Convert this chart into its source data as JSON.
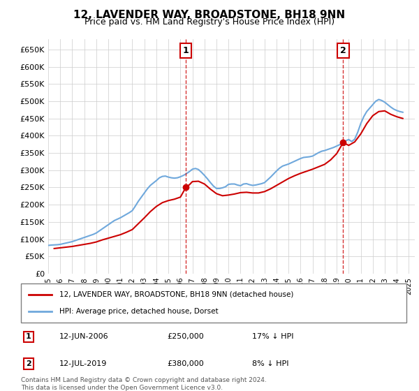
{
  "title": "12, LAVENDER WAY, BROADSTONE, BH18 9NN",
  "subtitle": "Price paid vs. HM Land Registry's House Price Index (HPI)",
  "ylabel_ticks": [
    "£0",
    "£50K",
    "£100K",
    "£150K",
    "£200K",
    "£250K",
    "£300K",
    "£350K",
    "£400K",
    "£450K",
    "£500K",
    "£550K",
    "£600K",
    "£650K"
  ],
  "ylim": [
    0,
    680000
  ],
  "yticks": [
    0,
    50000,
    100000,
    150000,
    200000,
    250000,
    300000,
    350000,
    400000,
    450000,
    500000,
    550000,
    600000,
    650000
  ],
  "xlim_start": 1995.0,
  "xlim_end": 2025.5,
  "hpi_color": "#6fa8dc",
  "price_color": "#cc0000",
  "transaction1": {
    "date_num": 2006.45,
    "price": 250000,
    "label": "1",
    "date_str": "12-JUN-2006",
    "price_str": "£250,000",
    "hpi_diff": "17% ↓ HPI"
  },
  "transaction2": {
    "date_num": 2019.54,
    "price": 380000,
    "label": "2",
    "date_str": "12-JUL-2019",
    "price_str": "£380,000",
    "hpi_diff": "8% ↓ HPI"
  },
  "legend_label_red": "12, LAVENDER WAY, BROADSTONE, BH18 9NN (detached house)",
  "legend_label_blue": "HPI: Average price, detached house, Dorset",
  "footer": "Contains HM Land Registry data © Crown copyright and database right 2024.\nThis data is licensed under the Open Government Licence v3.0.",
  "hpi_x": [
    1995.0,
    1995.25,
    1995.5,
    1995.75,
    1996.0,
    1996.25,
    1996.5,
    1996.75,
    1997.0,
    1997.25,
    1997.5,
    1997.75,
    1998.0,
    1998.25,
    1998.5,
    1998.75,
    1999.0,
    1999.25,
    1999.5,
    1999.75,
    2000.0,
    2000.25,
    2000.5,
    2000.75,
    2001.0,
    2001.25,
    2001.5,
    2001.75,
    2002.0,
    2002.25,
    2002.5,
    2002.75,
    2003.0,
    2003.25,
    2003.5,
    2003.75,
    2004.0,
    2004.25,
    2004.5,
    2004.75,
    2005.0,
    2005.25,
    2005.5,
    2005.75,
    2006.0,
    2006.25,
    2006.5,
    2006.75,
    2007.0,
    2007.25,
    2007.5,
    2007.75,
    2008.0,
    2008.25,
    2008.5,
    2008.75,
    2009.0,
    2009.25,
    2009.5,
    2009.75,
    2010.0,
    2010.25,
    2010.5,
    2010.75,
    2011.0,
    2011.25,
    2011.5,
    2011.75,
    2012.0,
    2012.25,
    2012.5,
    2012.75,
    2013.0,
    2013.25,
    2013.5,
    2013.75,
    2014.0,
    2014.25,
    2014.5,
    2014.75,
    2015.0,
    2015.25,
    2015.5,
    2015.75,
    2016.0,
    2016.25,
    2016.5,
    2016.75,
    2017.0,
    2017.25,
    2017.5,
    2017.75,
    2018.0,
    2018.25,
    2018.5,
    2018.75,
    2019.0,
    2019.25,
    2019.5,
    2019.75,
    2020.0,
    2020.25,
    2020.5,
    2020.75,
    2021.0,
    2021.25,
    2021.5,
    2021.75,
    2022.0,
    2022.25,
    2022.5,
    2022.75,
    2023.0,
    2023.25,
    2023.5,
    2023.75,
    2024.0,
    2024.25,
    2024.5
  ],
  "hpi_y": [
    82000,
    83000,
    83500,
    84000,
    85000,
    87000,
    89000,
    91000,
    93000,
    96000,
    99000,
    102000,
    105000,
    108000,
    111000,
    114000,
    118000,
    124000,
    130000,
    136000,
    142000,
    148000,
    154000,
    158000,
    162000,
    167000,
    172000,
    177000,
    183000,
    196000,
    210000,
    222000,
    234000,
    246000,
    256000,
    263000,
    270000,
    278000,
    282000,
    283000,
    280000,
    278000,
    277000,
    278000,
    281000,
    285000,
    290000,
    296000,
    303000,
    305000,
    302000,
    294000,
    285000,
    275000,
    264000,
    254000,
    247000,
    247000,
    249000,
    252000,
    259000,
    260000,
    260000,
    257000,
    255000,
    260000,
    261000,
    258000,
    256000,
    257000,
    259000,
    261000,
    264000,
    272000,
    280000,
    289000,
    298000,
    306000,
    312000,
    315000,
    318000,
    322000,
    326000,
    330000,
    334000,
    337000,
    338000,
    339000,
    341000,
    346000,
    351000,
    355000,
    357000,
    360000,
    363000,
    366000,
    370000,
    374000,
    378000,
    385000,
    389000,
    383000,
    390000,
    410000,
    435000,
    455000,
    470000,
    480000,
    490000,
    500000,
    505000,
    502000,
    497000,
    490000,
    483000,
    477000,
    473000,
    470000,
    468000
  ],
  "price_x": [
    1995.5,
    1996.0,
    1996.5,
    1997.0,
    1997.5,
    1998.0,
    1998.5,
    1999.0,
    1999.5,
    2000.0,
    2000.5,
    2001.0,
    2001.5,
    2002.0,
    2002.5,
    2003.0,
    2003.5,
    2004.0,
    2004.5,
    2005.0,
    2005.5,
    2006.0,
    2006.45,
    2006.75,
    2007.0,
    2007.5,
    2008.0,
    2008.5,
    2009.0,
    2009.5,
    2010.0,
    2010.5,
    2011.0,
    2011.5,
    2012.0,
    2012.5,
    2013.0,
    2013.5,
    2014.0,
    2014.5,
    2015.0,
    2015.5,
    2016.0,
    2016.5,
    2017.0,
    2017.5,
    2018.0,
    2018.5,
    2019.0,
    2019.54,
    2020.0,
    2020.5,
    2021.0,
    2021.5,
    2022.0,
    2022.5,
    2023.0,
    2023.5,
    2024.0,
    2024.5
  ],
  "price_y": [
    73000,
    75000,
    77000,
    79000,
    82000,
    85000,
    88000,
    92000,
    98000,
    103000,
    108000,
    113000,
    120000,
    128000,
    145000,
    162000,
    180000,
    195000,
    206000,
    212000,
    216000,
    222000,
    250000,
    258000,
    267000,
    268000,
    260000,
    245000,
    232000,
    226000,
    228000,
    231000,
    235000,
    236000,
    234000,
    234000,
    238000,
    246000,
    256000,
    266000,
    276000,
    284000,
    291000,
    297000,
    303000,
    310000,
    317000,
    330000,
    348000,
    380000,
    372000,
    382000,
    405000,
    435000,
    458000,
    470000,
    472000,
    462000,
    455000,
    450000
  ],
  "background_color": "#ffffff",
  "grid_color": "#cccccc",
  "plot_bg": "#ffffff"
}
